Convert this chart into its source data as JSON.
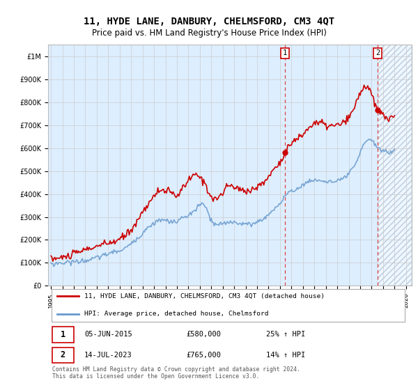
{
  "title": "11, HYDE LANE, DANBURY, CHELMSFORD, CM3 4QT",
  "subtitle": "Price paid vs. HM Land Registry's House Price Index (HPI)",
  "title_fontsize": 10,
  "subtitle_fontsize": 8.5,
  "ylabel_ticks": [
    "£0",
    "£100K",
    "£200K",
    "£300K",
    "£400K",
    "£500K",
    "£600K",
    "£700K",
    "£800K",
    "£900K",
    "£1M"
  ],
  "ytick_values": [
    0,
    100000,
    200000,
    300000,
    400000,
    500000,
    600000,
    700000,
    800000,
    900000,
    1000000
  ],
  "ylim": [
    0,
    1050000
  ],
  "xlim_start": 1994.75,
  "xlim_end": 2026.5,
  "xtick_years": [
    1995,
    1996,
    1997,
    1998,
    1999,
    2000,
    2001,
    2002,
    2003,
    2004,
    2005,
    2006,
    2007,
    2008,
    2009,
    2010,
    2011,
    2012,
    2013,
    2014,
    2015,
    2016,
    2017,
    2018,
    2019,
    2020,
    2021,
    2022,
    2023,
    2024,
    2025,
    2026
  ],
  "grid_color": "#cccccc",
  "bg_color": "#ffffff",
  "plot_bg_color": "#ddeeff",
  "red_color": "#cc0000",
  "blue_color": "#6699cc",
  "dashed_color": "#dd4444",
  "shade_color": "#cce0f5",
  "marker1_date": 2015.42,
  "marker1_value": 580000,
  "marker2_date": 2023.53,
  "marker2_value": 765000,
  "legend_label1": "11, HYDE LANE, DANBURY, CHELMSFORD, CM3 4QT (detached house)",
  "legend_label2": "HPI: Average price, detached house, Chelmsford",
  "annotation1_num": "1",
  "annotation1_date": "05-JUN-2015",
  "annotation1_price": "£580,000",
  "annotation1_pct": "25% ↑ HPI",
  "annotation2_num": "2",
  "annotation2_date": "14-JUL-2023",
  "annotation2_price": "£765,000",
  "annotation2_pct": "14% ↑ HPI",
  "footer": "Contains HM Land Registry data © Crown copyright and database right 2024.\nThis data is licensed under the Open Government Licence v3.0."
}
